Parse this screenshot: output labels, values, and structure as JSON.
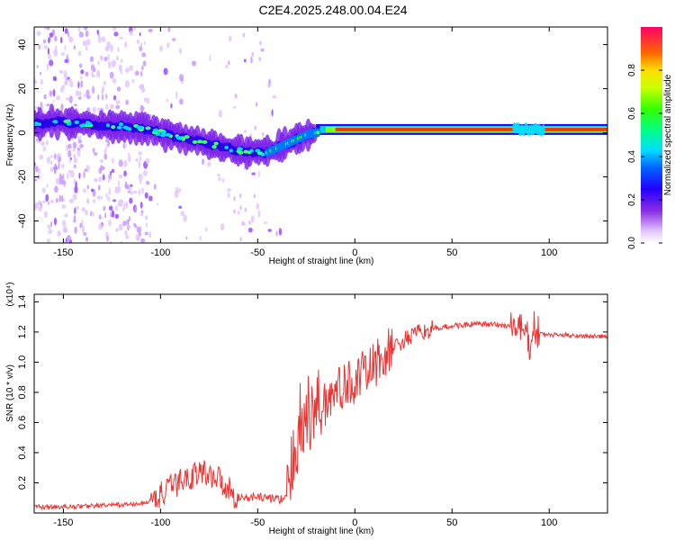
{
  "chart_data": [
    {
      "type": "heatmap",
      "title": "C2E4.2025.248.00.04.E24",
      "xlabel": "Height of straight line (km)",
      "ylabel": "Frequency (Hz)",
      "xlim": [
        -165,
        130
      ],
      "ylim": [
        -50,
        48
      ],
      "xticks": [
        -150,
        -100,
        -50,
        0,
        50,
        100
      ],
      "yticks": [
        -40,
        -20,
        0,
        20,
        40
      ],
      "colorbar": {
        "label": "Normalized spectral amplitude",
        "range": [
          0,
          1
        ],
        "ticks": [
          0.0,
          0.2,
          0.4,
          0.6,
          0.8
        ],
        "tick_labels": [
          "0.0",
          "0.2",
          "0.4",
          "0.6",
          "0.8"
        ]
      },
      "ridge": {
        "x": [
          -165,
          -150,
          -140,
          -130,
          -120,
          -110,
          -100,
          -90,
          -80,
          -70,
          -60,
          -50,
          -45,
          -40,
          -35,
          -30,
          -25,
          -20,
          -10,
          0,
          20,
          50,
          80,
          90,
          100,
          130
        ],
        "freq": [
          4,
          5,
          4,
          3,
          3,
          2,
          0,
          -2,
          -4,
          -6,
          -8,
          -9,
          -9,
          -7,
          -5,
          -3,
          -1,
          0,
          1,
          1,
          1,
          1,
          1,
          1,
          1,
          1
        ]
      }
    },
    {
      "type": "line",
      "xlabel": "Height of straight line (km)",
      "ylabel": "SNR (10 * v/v)",
      "y_multiplier": "(x10⁴)",
      "xlim": [
        -165,
        130
      ],
      "ylim": [
        0,
        1.45
      ],
      "xticks": [
        -150,
        -100,
        -50,
        0,
        50,
        100
      ],
      "yticks": [
        0.2,
        0.4,
        0.6,
        0.8,
        1.0,
        1.2,
        1.4
      ],
      "ytick_labels": [
        "0.2",
        "0.4",
        "0.6",
        "0.8",
        "1.0",
        "1.2",
        "1.4"
      ],
      "series": [
        {
          "name": "SNR",
          "color": "#ee3333",
          "x": [
            -165,
            -150,
            -130,
            -110,
            -105,
            -100,
            -95,
            -90,
            -85,
            -80,
            -75,
            -70,
            -65,
            -60,
            -55,
            -50,
            -45,
            -40,
            -35,
            -33,
            -30,
            -28,
            -25,
            -22,
            -20,
            -15,
            -10,
            -5,
            0,
            5,
            10,
            15,
            20,
            25,
            30,
            40,
            50,
            60,
            70,
            80,
            85,
            88,
            90,
            92,
            95,
            100,
            110,
            120,
            130
          ],
          "y": [
            0.04,
            0.04,
            0.05,
            0.06,
            0.08,
            0.12,
            0.16,
            0.21,
            0.24,
            0.27,
            0.26,
            0.23,
            0.16,
            0.1,
            0.1,
            0.11,
            0.1,
            0.09,
            0.1,
            0.2,
            0.5,
            0.6,
            0.65,
            0.62,
            0.72,
            0.74,
            0.8,
            0.84,
            0.88,
            0.92,
            0.98,
            1.04,
            1.1,
            1.14,
            1.18,
            1.22,
            1.24,
            1.25,
            1.25,
            1.24,
            1.22,
            1.18,
            1.12,
            1.22,
            1.19,
            1.18,
            1.18,
            1.17,
            1.17
          ]
        }
      ]
    }
  ]
}
